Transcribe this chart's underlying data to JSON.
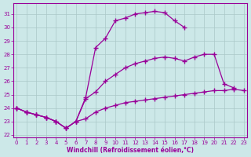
{
  "xlabel": "Windchill (Refroidissement éolien,°C)",
  "bg_color": "#cce8e8",
  "line_color": "#990099",
  "xlim": [
    -0.3,
    23.3
  ],
  "ylim": [
    21.8,
    31.8
  ],
  "xticks": [
    0,
    1,
    2,
    3,
    4,
    5,
    6,
    7,
    8,
    9,
    10,
    11,
    12,
    13,
    14,
    15,
    16,
    17,
    18,
    19,
    20,
    21,
    22,
    23
  ],
  "yticks": [
    22,
    23,
    24,
    25,
    26,
    27,
    28,
    29,
    30,
    31
  ],
  "curve1_x": [
    0,
    1,
    2,
    3,
    4,
    5,
    6,
    7,
    8,
    9,
    10,
    11,
    12,
    13,
    14,
    15,
    16,
    17
  ],
  "curve1_y": [
    24.0,
    23.7,
    23.5,
    23.3,
    23.0,
    22.5,
    23.0,
    24.8,
    28.5,
    29.2,
    30.5,
    30.7,
    31.0,
    31.1,
    31.2,
    31.1,
    30.5,
    30.0
  ],
  "curve2_x": [
    0,
    1,
    2,
    3,
    4,
    5,
    6,
    7,
    8,
    9,
    10,
    11,
    12,
    13,
    14,
    15,
    16,
    17,
    18,
    19,
    20,
    21,
    22
  ],
  "curve2_y": [
    24.0,
    23.7,
    23.5,
    23.3,
    23.0,
    22.5,
    23.0,
    24.7,
    25.2,
    26.0,
    26.5,
    27.0,
    27.3,
    27.5,
    27.7,
    27.8,
    27.7,
    27.5,
    27.8,
    28.0,
    28.0,
    25.8,
    25.5
  ],
  "curve3_x": [
    0,
    1,
    2,
    3,
    4,
    5,
    6,
    7,
    8,
    9,
    10,
    11,
    12,
    13,
    14,
    15,
    16,
    17,
    18,
    19,
    20,
    21,
    22,
    23
  ],
  "curve3_y": [
    24.0,
    23.7,
    23.5,
    23.3,
    23.0,
    22.5,
    23.0,
    23.2,
    23.7,
    24.0,
    24.2,
    24.4,
    24.5,
    24.6,
    24.7,
    24.8,
    24.9,
    25.0,
    25.1,
    25.2,
    25.3,
    25.3,
    25.4,
    25.3
  ]
}
